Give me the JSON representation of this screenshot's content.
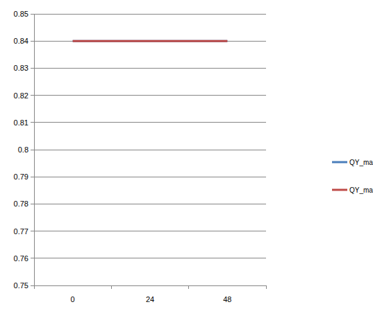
{
  "chart_data": {
    "type": "line",
    "categories": [
      "0",
      "24",
      "48"
    ],
    "series": [
      {
        "name": "QY_max con",
        "color": "#4a7ebb",
        "values": [
          0.84,
          0.84,
          0.84
        ]
      },
      {
        "name": "QY_max tre",
        "color": "#be4b48",
        "values": [
          0.84,
          0.84,
          0.84
        ]
      }
    ],
    "ylim": [
      0.75,
      0.85
    ],
    "yticks": [
      0.75,
      0.76,
      0.77,
      0.78,
      0.79,
      0.8,
      0.81,
      0.82,
      0.83,
      0.84,
      0.85
    ],
    "grid": true,
    "legend": "right"
  }
}
